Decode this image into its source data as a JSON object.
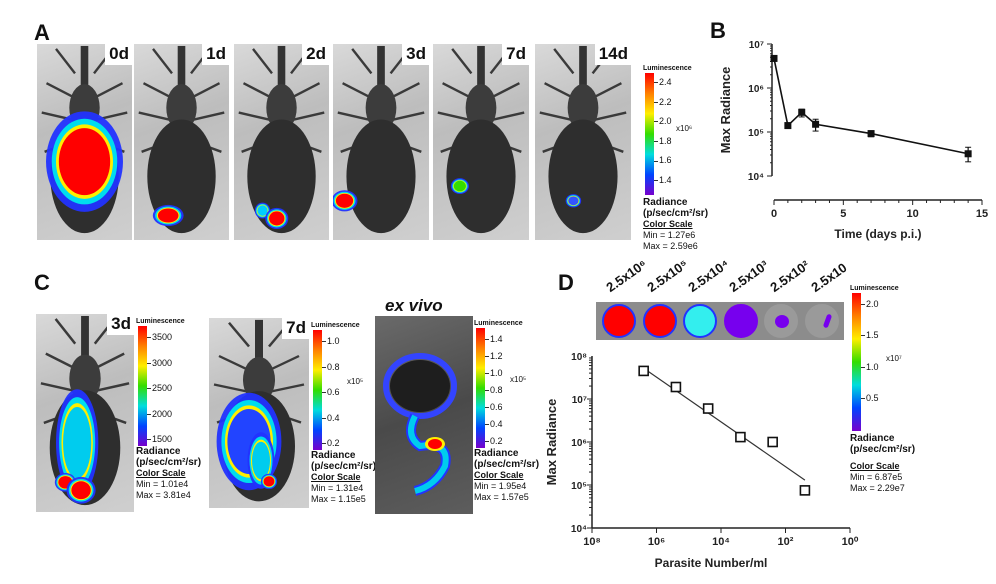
{
  "panels": {
    "A": {
      "letter": "A",
      "days": [
        "0d",
        "1d",
        "2d",
        "3d",
        "7d",
        "14d"
      ],
      "colorbar": {
        "title": "Luminescence",
        "ticks": [
          "2.4",
          "2.2",
          "2.0",
          "1.8",
          "1.6",
          "1.4"
        ],
        "multiplier": "x10⁶",
        "unit_label": "Radiance",
        "unit": "(p/sec/cm²/sr)",
        "scale_title": "Color Scale",
        "min": "Min = 1.27e6",
        "max": "Max = 2.59e6"
      }
    },
    "B": {
      "letter": "B"
    },
    "C": {
      "letter": "C",
      "images": [
        {
          "label": "3d",
          "colorbar": {
            "title": "Luminescence",
            "ticks": [
              "3500",
              "3000",
              "2500",
              "2000",
              "1500"
            ],
            "multiplier": "",
            "unit_label": "Radiance",
            "unit": "(p/sec/cm²/sr)",
            "scale_title": "Color Scale",
            "min": "Min = 1.01e4",
            "max": "Max = 3.81e4"
          }
        },
        {
          "label": "7d",
          "colorbar": {
            "title": "Luminescence",
            "ticks": [
              "1.0",
              "0.8",
              "0.6",
              "0.4",
              "0.2"
            ],
            "multiplier": "x10⁵",
            "unit_label": "Radiance",
            "unit": "(p/sec/cm²/sr)",
            "scale_title": "Color Scale",
            "min": "Min = 1.31e4",
            "max": "Max = 1.15e5"
          }
        },
        {
          "label": "ex vivo",
          "colorbar": {
            "title": "Luminescence",
            "ticks": [
              "1.4",
              "1.2",
              "1.0",
              "0.8",
              "0.6",
              "0.4",
              "0.2"
            ],
            "multiplier": "x10⁵",
            "unit_label": "Radiance",
            "unit": "(p/sec/cm²/sr)",
            "scale_title": "Color Scale",
            "min": "Min = 1.95e4",
            "max": "Max = 1.57e5"
          }
        }
      ]
    },
    "D": {
      "letter": "D",
      "wells": [
        "2.5x10⁶",
        "2.5x10⁵",
        "2.5x10⁴",
        "2.5x10³",
        "2.5x10²",
        "2.5x10"
      ],
      "colorbar": {
        "title": "Luminescence",
        "ticks": [
          "2.0",
          "1.5",
          "1.0",
          "0.5"
        ],
        "multiplier": "x10⁷",
        "unit_label": "Radiance",
        "unit": "(p/sec/cm²/sr)",
        "scale_title": "Color Scale",
        "min": "Min = 6.87e5",
        "max": "Max = 2.29e7"
      }
    }
  },
  "chart_data": [
    {
      "id": "B",
      "type": "line",
      "title": "",
      "xlabel": "Time (days p.i.)",
      "ylabel": "Max Radiance",
      "yscale": "log",
      "xlim": [
        0,
        15
      ],
      "ylim": [
        10000,
        10000000
      ],
      "xticks": [
        "0",
        "5",
        "10",
        "15"
      ],
      "yticks": [
        "10⁴",
        "10⁵",
        "10⁶",
        "10⁷"
      ],
      "series": [
        {
          "name": "Max Radiance",
          "x": [
            0,
            1,
            2,
            3,
            7,
            14
          ],
          "y": [
            4700000,
            140000,
            280000,
            150000,
            92000,
            32000
          ],
          "err_low": [
            4500000,
            120000,
            220000,
            105000,
            78000,
            21000
          ],
          "err_high": [
            4900000,
            160000,
            330000,
            195000,
            106000,
            45000
          ],
          "marker": "filled-square"
        }
      ]
    },
    {
      "id": "D",
      "type": "scatter",
      "title": "",
      "xlabel": "Parasite  Number/ml",
      "ylabel": "Max Radiance",
      "xscale": "log",
      "yscale": "log",
      "x_reversed": true,
      "xlim": [
        100000000,
        1
      ],
      "ylim": [
        10000,
        100000000
      ],
      "xticks": [
        "10⁸",
        "10⁶",
        "10⁴",
        "10²",
        "10⁰"
      ],
      "yticks": [
        "10⁴",
        "10⁵",
        "10⁶",
        "10⁷",
        "10⁸"
      ],
      "series": [
        {
          "name": "wells",
          "x": [
            2500000,
            250000,
            25000,
            2500,
            250,
            25
          ],
          "y": [
            45000000,
            19000000,
            6000000,
            1300000,
            1000000,
            75000
          ],
          "marker": "open-square"
        }
      ],
      "fit_line": {
        "x": [
          2500000,
          25
        ],
        "y": [
          52000000,
          130000
        ]
      }
    }
  ]
}
